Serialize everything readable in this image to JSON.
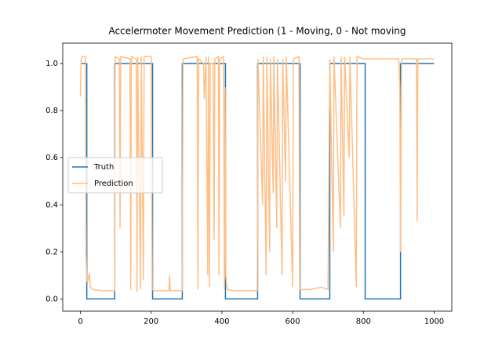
{
  "chart_data": {
    "type": "line",
    "title": "Accelermoter Movement Prediction (1 - Moving, 0 - Not moving",
    "xlim": [
      -50,
      1050
    ],
    "ylim": [
      -0.052,
      1.087
    ],
    "xticks": [
      0,
      200,
      400,
      600,
      800,
      1000
    ],
    "yticks": [
      {
        "value": 0,
        "label": "0.0"
      },
      0.2,
      0.4,
      0.6,
      0.8,
      {
        "value": 1,
        "label": "1.0"
      }
    ],
    "legend": "center left",
    "series": [
      {
        "name": "Truth",
        "color": "#1f77b4",
        "x": [
          0,
          18,
          18,
          97,
          97,
          204,
          204,
          288,
          288,
          410,
          410,
          501,
          501,
          621,
          621,
          705,
          705,
          805,
          805,
          905,
          905,
          1000
        ],
        "values": [
          1,
          1,
          0,
          0,
          1,
          1,
          0,
          0,
          1,
          1,
          0,
          0,
          1,
          1,
          0,
          0,
          1,
          1,
          0,
          0,
          1,
          1
        ]
      },
      {
        "name": "Prediction",
        "color": "#ffbf86",
        "x": [
          0,
          2,
          5,
          14,
          16,
          18,
          20,
          25,
          28,
          35,
          60,
          97,
          98,
          110,
          112,
          114,
          140,
          142,
          144,
          158,
          160,
          162,
          170,
          172,
          178,
          180,
          200,
          203,
          210,
          250,
          252,
          254,
          288,
          290,
          330,
          332,
          334,
          348,
          350,
          355,
          360,
          362,
          365,
          367,
          375,
          378,
          380,
          390,
          392,
          394,
          405,
          407,
          409,
          411,
          415,
          430,
          500,
          502,
          515,
          517,
          525,
          527,
          535,
          537,
          545,
          547,
          555,
          557,
          570,
          572,
          580,
          582,
          600,
          602,
          618,
          620,
          650,
          680,
          700,
          705,
          715,
          717,
          735,
          737,
          745,
          747,
          760,
          762,
          780,
          782,
          800,
          850,
          900,
          903,
          905,
          908,
          950,
          952,
          954,
          1000
        ],
        "values": [
          0.86,
          1.02,
          1.03,
          1.03,
          0.19,
          0.08,
          0.07,
          0.11,
          0.05,
          0.04,
          0.035,
          0.035,
          1.03,
          1.02,
          0.3,
          1.03,
          1.02,
          0.04,
          1.03,
          1.02,
          0.03,
          1.03,
          0.04,
          1.03,
          0.08,
          1.03,
          1.03,
          0.04,
          0.035,
          0.035,
          0.1,
          0.035,
          0.035,
          1.02,
          1.03,
          0.04,
          1.02,
          1.0,
          0.85,
          1.03,
          0.1,
          1.03,
          0.05,
          1.0,
          1.0,
          0.25,
          1.02,
          1.03,
          0.1,
          1.02,
          1.03,
          0.04,
          0.9,
          0.1,
          0.04,
          0.035,
          0.035,
          1.02,
          0.4,
          1.03,
          0.1,
          1.03,
          0.2,
          1.02,
          0.45,
          1.03,
          0.3,
          1.02,
          0.1,
          1.02,
          0.5,
          1.03,
          0.05,
          1.02,
          1.03,
          0.04,
          0.04,
          0.05,
          0.04,
          1.02,
          0.2,
          1.03,
          0.3,
          1.03,
          0.35,
          1.03,
          0.6,
          1.03,
          0.05,
          1.03,
          1.02,
          1.02,
          1.02,
          0.9,
          0.2,
          1.02,
          1.02,
          0.33,
          1.02,
          1.02
        ]
      }
    ]
  }
}
